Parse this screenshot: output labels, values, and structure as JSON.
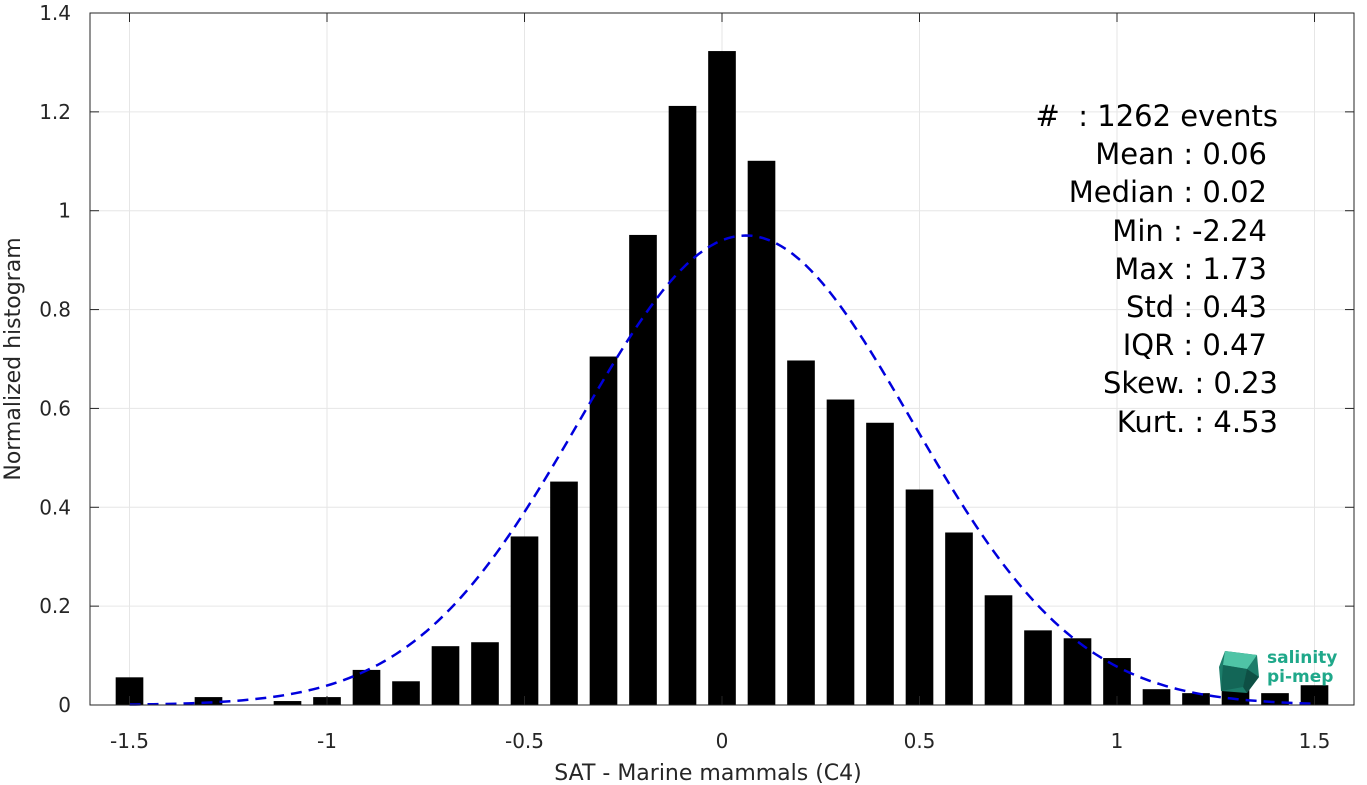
{
  "chart_data": {
    "type": "bar",
    "xlabel": "SAT - Marine mammals (C4)",
    "ylabel": "Normalized histogram",
    "xlim": [
      -1.6,
      1.6
    ],
    "ylim": [
      0,
      1.4
    ],
    "xticks": [
      -1.5,
      -1,
      -0.5,
      0,
      0.5,
      1,
      1.5
    ],
    "xtick_labels": [
      "-1.5",
      "-1",
      "-0.5",
      "0",
      "0.5",
      "1",
      "1.5"
    ],
    "yticks": [
      0,
      0.2,
      0.4,
      0.6,
      0.8,
      1,
      1.2,
      1.4
    ],
    "ytick_labels": [
      "0",
      "0.2",
      "0.4",
      "0.6",
      "0.8",
      "1",
      "1.2",
      "1.4"
    ],
    "grid": true,
    "bin_width": 0.1,
    "bins": [
      {
        "x": -1.5,
        "y": 0.056
      },
      {
        "x": -1.3,
        "y": 0.016
      },
      {
        "x": -1.1,
        "y": 0.008
      },
      {
        "x": -1.0,
        "y": 0.016
      },
      {
        "x": -0.9,
        "y": 0.071
      },
      {
        "x": -0.8,
        "y": 0.048
      },
      {
        "x": -0.7,
        "y": 0.119
      },
      {
        "x": -0.6,
        "y": 0.127
      },
      {
        "x": -0.5,
        "y": 0.341
      },
      {
        "x": -0.4,
        "y": 0.452
      },
      {
        "x": -0.3,
        "y": 0.705
      },
      {
        "x": -0.2,
        "y": 0.951
      },
      {
        "x": -0.1,
        "y": 1.212
      },
      {
        "x": 0.0,
        "y": 1.323
      },
      {
        "x": 0.1,
        "y": 1.101
      },
      {
        "x": 0.2,
        "y": 0.697
      },
      {
        "x": 0.3,
        "y": 0.618
      },
      {
        "x": 0.4,
        "y": 0.571
      },
      {
        "x": 0.5,
        "y": 0.436
      },
      {
        "x": 0.6,
        "y": 0.349
      },
      {
        "x": 0.7,
        "y": 0.222
      },
      {
        "x": 0.8,
        "y": 0.151
      },
      {
        "x": 0.9,
        "y": 0.135
      },
      {
        "x": 1.0,
        "y": 0.095
      },
      {
        "x": 1.1,
        "y": 0.032
      },
      {
        "x": 1.2,
        "y": 0.024
      },
      {
        "x": 1.3,
        "y": 0.063
      },
      {
        "x": 1.4,
        "y": 0.024
      },
      {
        "x": 1.5,
        "y": 0.04
      }
    ],
    "bar_color": "#000000",
    "fit": {
      "type": "gaussian",
      "mean": 0.06,
      "std": 0.42,
      "color": "#0000dd",
      "style": "dashed",
      "x_range": [
        -1.5,
        1.5
      ]
    },
    "stats_lines": [
      "#  : 1262 events",
      "Mean : 0.06",
      "Median : 0.02",
      "Min : -2.24",
      "Max : 1.73",
      "Std : 0.43",
      "IQR : 0.47",
      "Skew. : 0.23",
      "Kurt. : 4.53"
    ],
    "logo": {
      "line1": "salinity",
      "line2": "pi-mep",
      "color": "#1fa88a"
    }
  }
}
